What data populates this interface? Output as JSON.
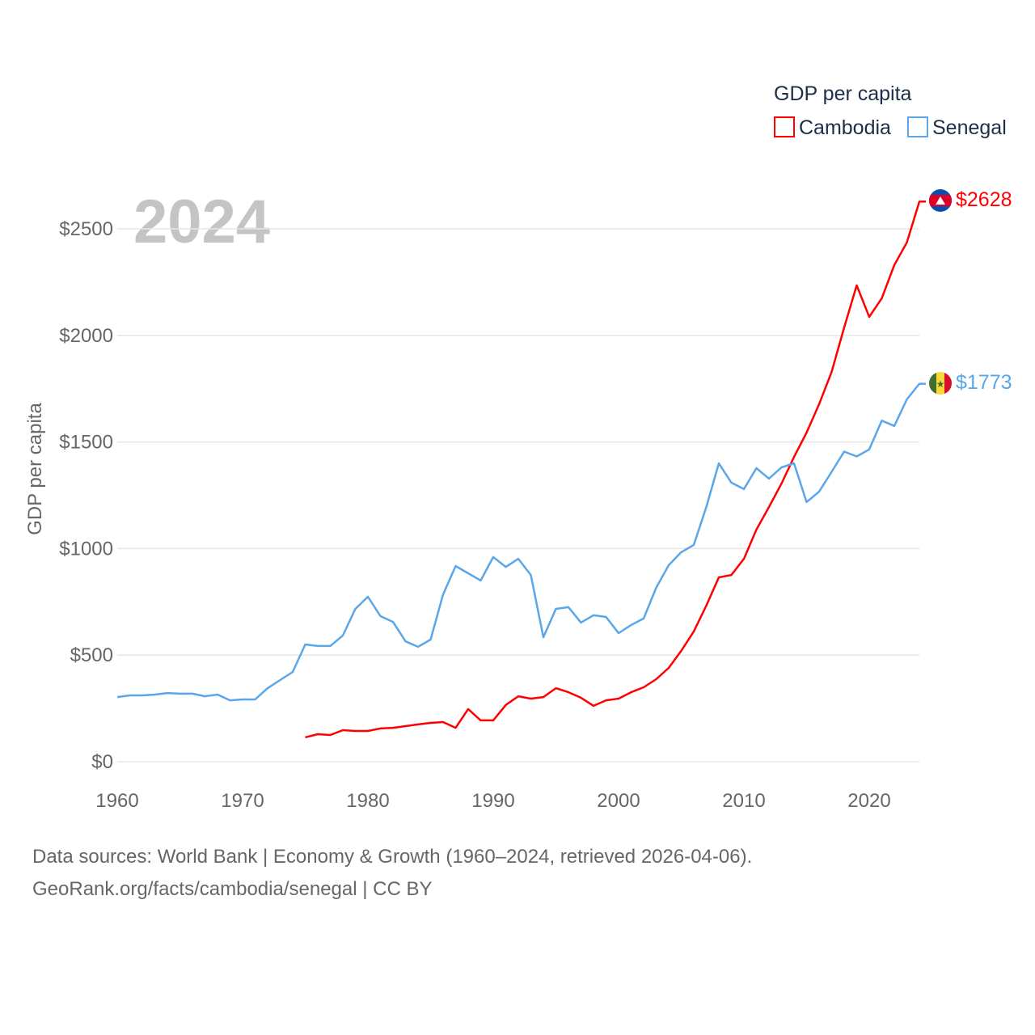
{
  "chart_data": {
    "type": "line",
    "title": "GDP per capita",
    "year_label": "2024",
    "ylabel": "GDP per capita",
    "xlabel": "",
    "xlim": [
      1960,
      2024
    ],
    "ylim": [
      0,
      2700
    ],
    "x_ticks": [
      "1960",
      "1970",
      "1980",
      "1990",
      "2000",
      "2010",
      "2020"
    ],
    "x_tick_values": [
      1960,
      1970,
      1980,
      1990,
      2000,
      2010,
      2020
    ],
    "y_ticks": [
      "$0",
      "$500",
      "$1000",
      "$1500",
      "$2000",
      "$2500"
    ],
    "y_tick_values": [
      0,
      500,
      1000,
      1500,
      2000,
      2500
    ],
    "grid": true,
    "legend_position": "top-right",
    "series": [
      {
        "name": "Cambodia",
        "color": "#ff0000",
        "end_label": "$2628",
        "start_year": 1975,
        "values": [
          114,
          129,
          125,
          148,
          144,
          144,
          156,
          159,
          167,
          175,
          182,
          186,
          159,
          247,
          194,
          194,
          266,
          307,
          296,
          303,
          345,
          326,
          300,
          262,
          288,
          296,
          326,
          349,
          387,
          440,
          520,
          611,
          732,
          865,
          876,
          952,
          1089,
          1195,
          1305,
          1430,
          1544,
          1677,
          1829,
          2037,
          2235,
          2087,
          2174,
          2330,
          2436,
          2628
        ]
      },
      {
        "name": "Senegal",
        "color": "#5aa6ea",
        "end_label": "$1773",
        "start_year": 1960,
        "values": [
          303,
          311,
          311,
          315,
          322,
          319,
          319,
          307,
          315,
          288,
          292,
          292,
          345,
          383,
          421,
          550,
          543,
          543,
          592,
          717,
          774,
          683,
          656,
          565,
          539,
          573,
          785,
          918,
          884,
          850,
          960,
          914,
          952,
          876,
          584,
          717,
          725,
          653,
          687,
          679,
          603,
          641,
          672,
          816,
          922,
          983,
          1017,
          1195,
          1400,
          1309,
          1279,
          1377,
          1328,
          1381,
          1400,
          1218,
          1267,
          1360,
          1455,
          1432,
          1465,
          1600,
          1575,
          1700,
          1773
        ]
      }
    ]
  },
  "footer": {
    "line1": "Data sources: World Bank | Economy & Growth (1960–2024, retrieved 2026-04-06).",
    "line2": "GeoRank.org/facts/cambodia/senegal | CC BY"
  }
}
